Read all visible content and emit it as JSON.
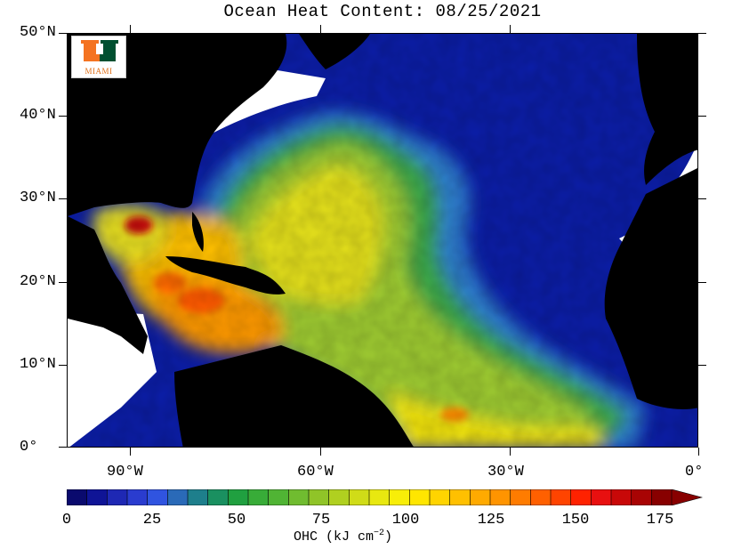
{
  "title": "Ocean Heat Content: 08/25/2021",
  "logo": {
    "text": "MIAMI",
    "colors": {
      "green": "#005030",
      "orange": "#f47321"
    }
  },
  "map": {
    "latitude_labels": [
      "50°N",
      "40°N",
      "30°N",
      "20°N",
      "10°N",
      "0°"
    ],
    "longitude_labels": [
      "90°W",
      "60°W",
      "30°W",
      "0°"
    ],
    "land_color": "#000000",
    "no_data_color": "#ffffff"
  },
  "colorbar": {
    "tick_labels": [
      "0",
      "25",
      "50",
      "75",
      "100",
      "125",
      "150",
      "175"
    ],
    "unit_label": "OHC (kJ cm",
    "unit_exponent": "−2",
    "unit_close": ")",
    "extend": "max",
    "colors": [
      "#0a0a6e",
      "#0f1496",
      "#1e28b4",
      "#2a3ccf",
      "#3054e0",
      "#2a6ab8",
      "#1e7f8c",
      "#1a9060",
      "#20a040",
      "#38ac38",
      "#50b434",
      "#70bc30",
      "#90c428",
      "#b0d020",
      "#d0dc18",
      "#e8e810",
      "#f8ee08",
      "#ffe600",
      "#ffd400",
      "#ffc000",
      "#ffaa00",
      "#ff9400",
      "#ff7c00",
      "#ff6000",
      "#ff4400",
      "#ff2200",
      "#e81010",
      "#c80808",
      "#a80404",
      "#880000"
    ]
  }
}
